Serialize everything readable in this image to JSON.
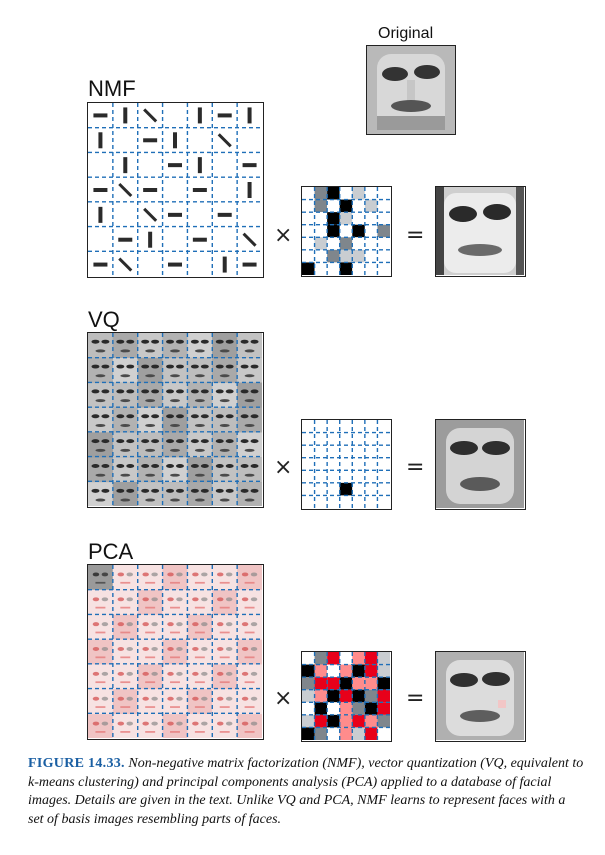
{
  "original": {
    "label": "Original"
  },
  "rows": [
    {
      "label": "NMF",
      "code_cells": [
        [
          0,
          2,
          3,
          0,
          1,
          0,
          0
        ],
        [
          0,
          2,
          0,
          3,
          0,
          1,
          0
        ],
        [
          0,
          0,
          3,
          1,
          0,
          0,
          0
        ],
        [
          0,
          0,
          3,
          0,
          3,
          0,
          2
        ],
        [
          0,
          1,
          0,
          2,
          0,
          0,
          0
        ],
        [
          0,
          0,
          2,
          1,
          1,
          0,
          0
        ],
        [
          3,
          0,
          0,
          3,
          0,
          0,
          0
        ]
      ]
    },
    {
      "label": "VQ",
      "code_cells": [
        [
          0,
          0,
          0,
          0,
          0,
          0,
          0
        ],
        [
          0,
          0,
          0,
          0,
          0,
          0,
          0
        ],
        [
          0,
          0,
          0,
          0,
          0,
          0,
          0
        ],
        [
          0,
          0,
          0,
          0,
          0,
          0,
          0
        ],
        [
          0,
          0,
          0,
          0,
          0,
          0,
          0
        ],
        [
          0,
          0,
          0,
          3,
          0,
          0,
          0
        ],
        [
          0,
          0,
          0,
          0,
          0,
          0,
          0
        ]
      ]
    },
    {
      "label": "PCA",
      "code_cells": [
        [
          0,
          2,
          5,
          0,
          4,
          5,
          1
        ],
        [
          3,
          4,
          0,
          4,
          3,
          5,
          1
        ],
        [
          2,
          5,
          5,
          3,
          4,
          4,
          3
        ],
        [
          1,
          4,
          3,
          5,
          3,
          2,
          5
        ],
        [
          0,
          3,
          0,
          4,
          2,
          3,
          5
        ],
        [
          1,
          5,
          3,
          4,
          5,
          4,
          2
        ],
        [
          3,
          2,
          0,
          4,
          1,
          5,
          0
        ]
      ]
    }
  ],
  "operators": {
    "times": "×",
    "equals": "="
  },
  "caption": {
    "figure": "FIGURE 14.33.",
    "text": "Non-negative matrix factorization (NMF), vector quantization (VQ, equivalent to k-means clustering) and principal components analysis (PCA) applied to a database of facial images. Details are given in the text. Unlike VQ and PCA, NMF learns to represent faces with a set of basis images resembling parts of faces."
  },
  "colors": {
    "grid_line": "#1f6fb8",
    "frame": "#222222",
    "code_levels": [
      "#ffffff",
      "#c9cdd1",
      "#7f868c",
      "#000000",
      "#ff8c8c",
      "#e8001a"
    ]
  }
}
